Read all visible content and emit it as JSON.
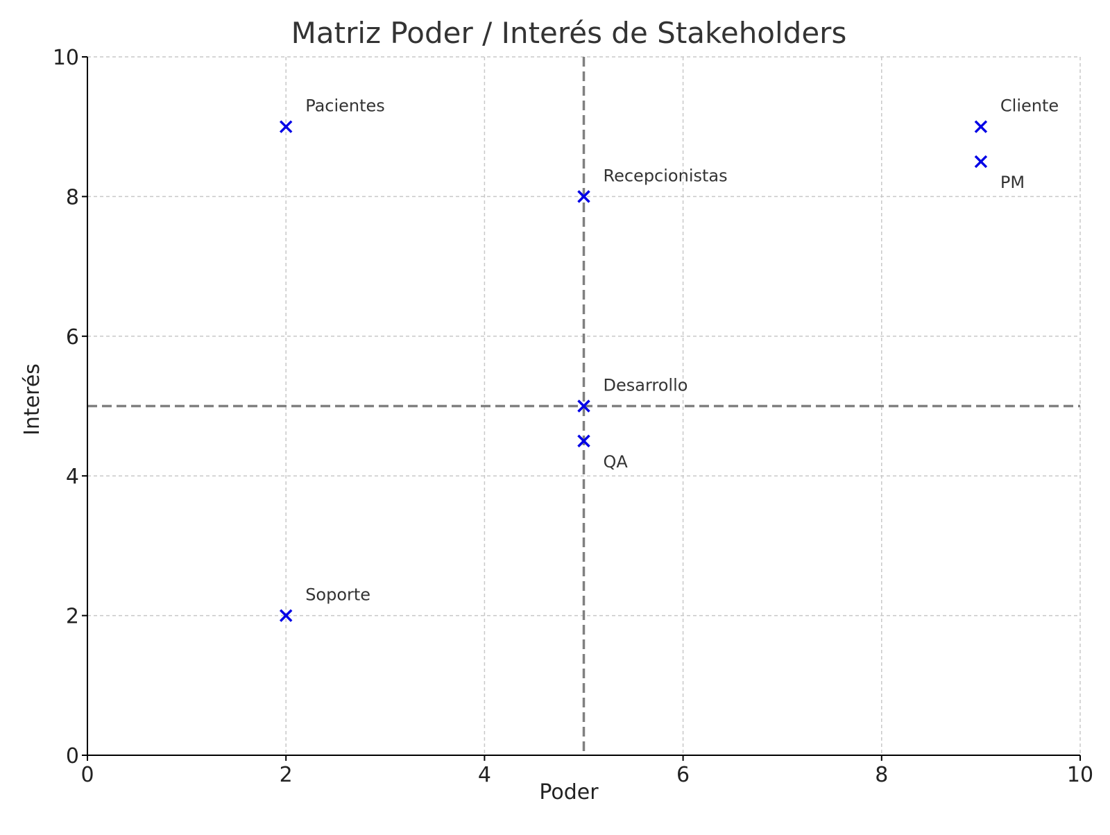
{
  "chart_data": {
    "type": "scatter",
    "title": "Matriz Poder / Interés de Stakeholders",
    "xlabel": "Poder",
    "ylabel": "Interés",
    "xlim": [
      0,
      10
    ],
    "ylim": [
      0,
      10
    ],
    "x_ticks": [
      0,
      2,
      4,
      6,
      8,
      10
    ],
    "y_ticks": [
      0,
      2,
      4,
      6,
      8,
      10
    ],
    "x_tick_labels": [
      "0",
      "2",
      "4",
      "6",
      "8",
      "10"
    ],
    "y_tick_labels": [
      "0",
      "2",
      "4",
      "6",
      "8",
      "10"
    ],
    "grid": true,
    "grid_style": "dashed",
    "marker": "x",
    "marker_color": "#0000e6",
    "reference_lines": [
      {
        "orientation": "vertical",
        "value": 5,
        "style": "dashed",
        "color": "#808080"
      },
      {
        "orientation": "horizontal",
        "value": 5,
        "style": "dashed",
        "color": "#808080"
      }
    ],
    "points": [
      {
        "label": "Cliente",
        "x": 9,
        "y": 9,
        "label_position": "above-right"
      },
      {
        "label": "PM",
        "x": 9,
        "y": 8.5,
        "label_position": "below-right"
      },
      {
        "label": "Desarrollo",
        "x": 5,
        "y": 5,
        "label_position": "above-right"
      },
      {
        "label": "QA",
        "x": 5,
        "y": 4.5,
        "label_position": "below-right"
      },
      {
        "label": "Recepcionistas",
        "x": 5,
        "y": 8,
        "label_position": "above-right"
      },
      {
        "label": "Pacientes",
        "x": 2,
        "y": 9,
        "label_position": "above-right"
      },
      {
        "label": "Soporte",
        "x": 2,
        "y": 2,
        "label_position": "above-right"
      }
    ]
  }
}
